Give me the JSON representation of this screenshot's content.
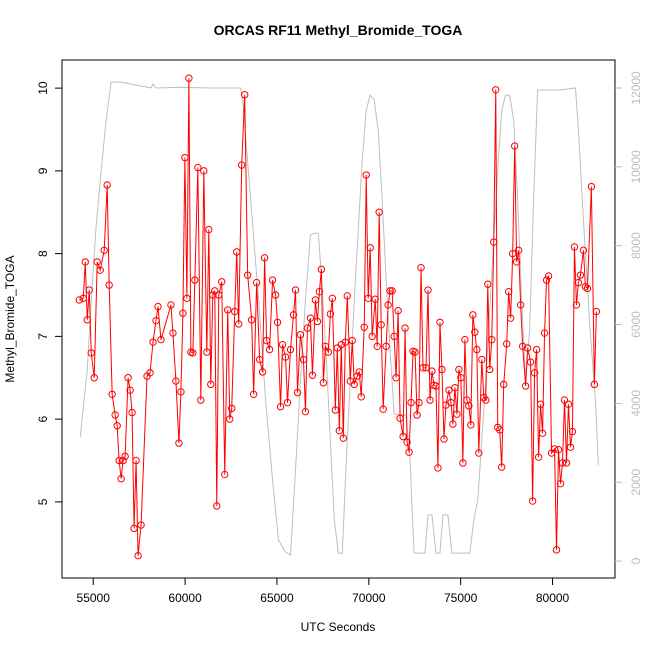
{
  "chart_data": {
    "type": "line",
    "title": "ORCAS RF11 Methyl_Bromide_TOGA",
    "x_label": "UTC Seconds",
    "y_label": "Methyl_Bromide_TOGA",
    "xlim": [
      53300,
      83400
    ],
    "xticks": [
      55000,
      60000,
      65000,
      70000,
      75000,
      80000
    ],
    "ylim": [
      4.08,
      10.34
    ],
    "yticks": [
      5,
      6,
      7,
      8,
      9,
      10
    ],
    "y2lim": [
      -430,
      12710
    ],
    "y2ticks": [
      0,
      2000,
      4000,
      6000,
      8000,
      10000,
      12000
    ],
    "series": [
      {
        "color": "#ff0000",
        "markers": true,
        "x": [
          54241,
          54458,
          54566,
          54675,
          54783,
          54892,
          55054,
          55217,
          55380,
          55597,
          55759,
          55868,
          56030,
          56193,
          56302,
          56410,
          56518,
          56627,
          56735,
          56898,
          57007,
          57115,
          57223,
          57332,
          57440,
          57603,
          57928,
          58091,
          58254,
          58416,
          58525,
          58688,
          59230,
          59338,
          59501,
          59664,
          59772,
          59881,
          59989,
          60098,
          60206,
          60315,
          60423,
          60531,
          60694,
          60857,
          61020,
          61182,
          61291,
          61399,
          61508,
          61616,
          61725,
          61833,
          61996,
          62158,
          62321,
          62430,
          62538,
          62701,
          62809,
          62918,
          63080,
          63243,
          63406,
          63623,
          63731,
          63894,
          64057,
          64219,
          64328,
          64436,
          64599,
          64761,
          64924,
          65033,
          65195,
          65304,
          65466,
          65575,
          65738,
          65900,
          66009,
          66117,
          66280,
          66443,
          66551,
          66659,
          66822,
          66931,
          67093,
          67202,
          67310,
          67419,
          67527,
          67636,
          67798,
          67907,
          68015,
          68178,
          68286,
          68395,
          68503,
          68612,
          68720,
          68829,
          68991,
          69100,
          69208,
          69371,
          69479,
          69588,
          69751,
          69859,
          69967,
          70076,
          70184,
          70347,
          70456,
          70564,
          70672,
          70781,
          70944,
          71052,
          71161,
          71269,
          71377,
          71486,
          71594,
          71703,
          71866,
          71974,
          72082,
          72191,
          72299,
          72408,
          72516,
          72625,
          72733,
          72842,
          72950,
          73113,
          73221,
          73330,
          73438,
          73547,
          73655,
          73764,
          73872,
          73981,
          74090,
          74198,
          74361,
          74469,
          74578,
          74686,
          74795,
          74903,
          75011,
          75120,
          75228,
          75336,
          75445,
          75553,
          75662,
          75770,
          75879,
          75987,
          76150,
          76258,
          76367,
          76475,
          76584,
          76692,
          76800,
          76909,
          77017,
          77126,
          77234,
          77343,
          77505,
          77614,
          77722,
          77831,
          77939,
          78048,
          78156,
          78265,
          78373,
          78536,
          78644,
          78807,
          78915,
          79024,
          79132,
          79241,
          79349,
          79458,
          79566,
          79675,
          79783,
          79946,
          80109,
          80217,
          80326,
          80434,
          80543,
          80651,
          80760,
          80868,
          80977,
          81085,
          81194,
          81302,
          81411,
          81519,
          81682,
          81790,
          81899,
          82115,
          82278,
          82387
        ],
        "values": [
          7.44,
          7.46,
          7.9,
          7.2,
          7.56,
          6.8,
          6.5,
          7.9,
          7.8,
          8.04,
          8.83,
          7.62,
          6.3,
          6.05,
          5.92,
          5.5,
          5.28,
          5.5,
          5.55,
          6.5,
          6.35,
          6.08,
          4.68,
          5.5,
          4.35,
          4.72,
          6.52,
          6.56,
          6.93,
          7.19,
          7.36,
          6.96,
          7.38,
          7.04,
          6.46,
          5.71,
          6.33,
          7.28,
          9.16,
          7.46,
          10.12,
          6.81,
          6.8,
          7.68,
          9.04,
          6.23,
          9.0,
          6.81,
          8.29,
          6.42,
          7.5,
          7.55,
          4.95,
          7.5,
          7.66,
          5.33,
          7.32,
          6.0,
          6.13,
          7.3,
          8.02,
          7.15,
          9.07,
          9.92,
          7.74,
          7.2,
          6.3,
          7.65,
          6.72,
          6.57,
          7.95,
          6.95,
          6.84,
          7.68,
          7.5,
          7.17,
          6.15,
          6.9,
          6.75,
          6.2,
          6.84,
          7.26,
          7.56,
          6.32,
          7.02,
          6.72,
          6.09,
          7.1,
          7.22,
          6.53,
          7.44,
          7.18,
          7.54,
          7.81,
          6.44,
          6.88,
          6.81,
          7.27,
          7.46,
          6.11,
          6.86,
          5.86,
          6.9,
          5.77,
          6.93,
          7.49,
          6.46,
          6.95,
          6.42,
          6.52,
          6.57,
          6.27,
          7.11,
          8.95,
          7.46,
          8.07,
          7.0,
          7.45,
          6.88,
          8.5,
          7.14,
          6.12,
          6.88,
          7.38,
          7.55,
          7.55,
          7.0,
          6.5,
          7.31,
          6.01,
          5.79,
          7.1,
          5.72,
          5.6,
          6.2,
          6.82,
          6.81,
          6.05,
          6.2,
          7.83,
          6.62,
          6.62,
          7.56,
          6.23,
          6.58,
          6.41,
          6.4,
          5.41,
          7.17,
          6.6,
          5.76,
          6.17,
          6.35,
          6.2,
          5.94,
          6.38,
          6.06,
          6.6,
          6.5,
          5.47,
          6.96,
          6.23,
          6.16,
          5.93,
          7.26,
          7.05,
          6.84,
          5.59,
          6.72,
          6.26,
          6.23,
          7.63,
          6.6,
          6.96,
          8.14,
          9.98,
          5.9,
          5.87,
          5.42,
          6.42,
          6.91,
          7.54,
          7.22,
          8.0,
          9.3,
          7.9,
          8.04,
          7.38,
          6.88,
          6.4,
          6.86,
          6.69,
          5.01,
          6.56,
          6.84,
          5.54,
          6.18,
          5.83,
          7.04,
          7.68,
          7.73,
          5.59,
          5.64,
          4.42,
          5.63,
          5.22,
          5.47,
          6.23,
          5.47,
          6.18,
          5.66,
          5.85,
          8.08,
          7.38,
          7.65,
          7.74,
          8.04,
          7.6,
          7.58,
          8.81,
          6.42,
          7.3
        ]
      },
      {
        "color": "#bebebe",
        "axis": "y2",
        "markers": false,
        "x": [
          54295,
          54675,
          54892,
          55163,
          55434,
          55705,
          55976,
          56518,
          57603,
          58145,
          58254,
          58416,
          59772,
          61399,
          63026,
          63134,
          63569,
          64002,
          64382,
          64761,
          65087,
          65466,
          65738,
          66009,
          66280,
          66551,
          66822,
          67093,
          67256,
          67473,
          67690,
          67907,
          68124,
          68341,
          68558,
          68775,
          68991,
          69208,
          69425,
          69642,
          69859,
          70076,
          70293,
          70510,
          70727,
          70944,
          71161,
          71377,
          72028,
          72245,
          72462,
          73059,
          73221,
          73438,
          73655,
          73872,
          74035,
          74306,
          74523,
          75499,
          75716,
          75933,
          76150,
          76367,
          76584,
          76800,
          77017,
          77234,
          77451,
          77668,
          77885,
          78102,
          78319,
          78536,
          78753,
          78970,
          79187,
          80380,
          81248,
          81411,
          81682,
          82007,
          82333,
          82495
        ],
        "values": [
          3150,
          4850,
          6620,
          8530,
          9920,
          11190,
          12150,
          12150,
          12050,
          12000,
          12100,
          12000,
          12020,
          12000,
          12000,
          11700,
          9160,
          6620,
          4080,
          2050,
          530,
          230,
          150,
          2300,
          4590,
          6620,
          8270,
          8320,
          8300,
          6870,
          5100,
          3060,
          1040,
          200,
          200,
          2560,
          4590,
          6620,
          8400,
          10170,
          11440,
          11820,
          11700,
          10930,
          9160,
          7130,
          5350,
          3730,
          3700,
          2560,
          200,
          200,
          1170,
          1170,
          200,
          200,
          1170,
          1170,
          200,
          200,
          1040,
          1550,
          3070,
          4590,
          6370,
          8140,
          9920,
          11440,
          11830,
          11800,
          11190,
          9160,
          6620,
          4590,
          5860,
          9160,
          11950,
          11950,
          12000,
          10930,
          8650,
          6120,
          4080,
          2440
        ]
      }
    ]
  }
}
